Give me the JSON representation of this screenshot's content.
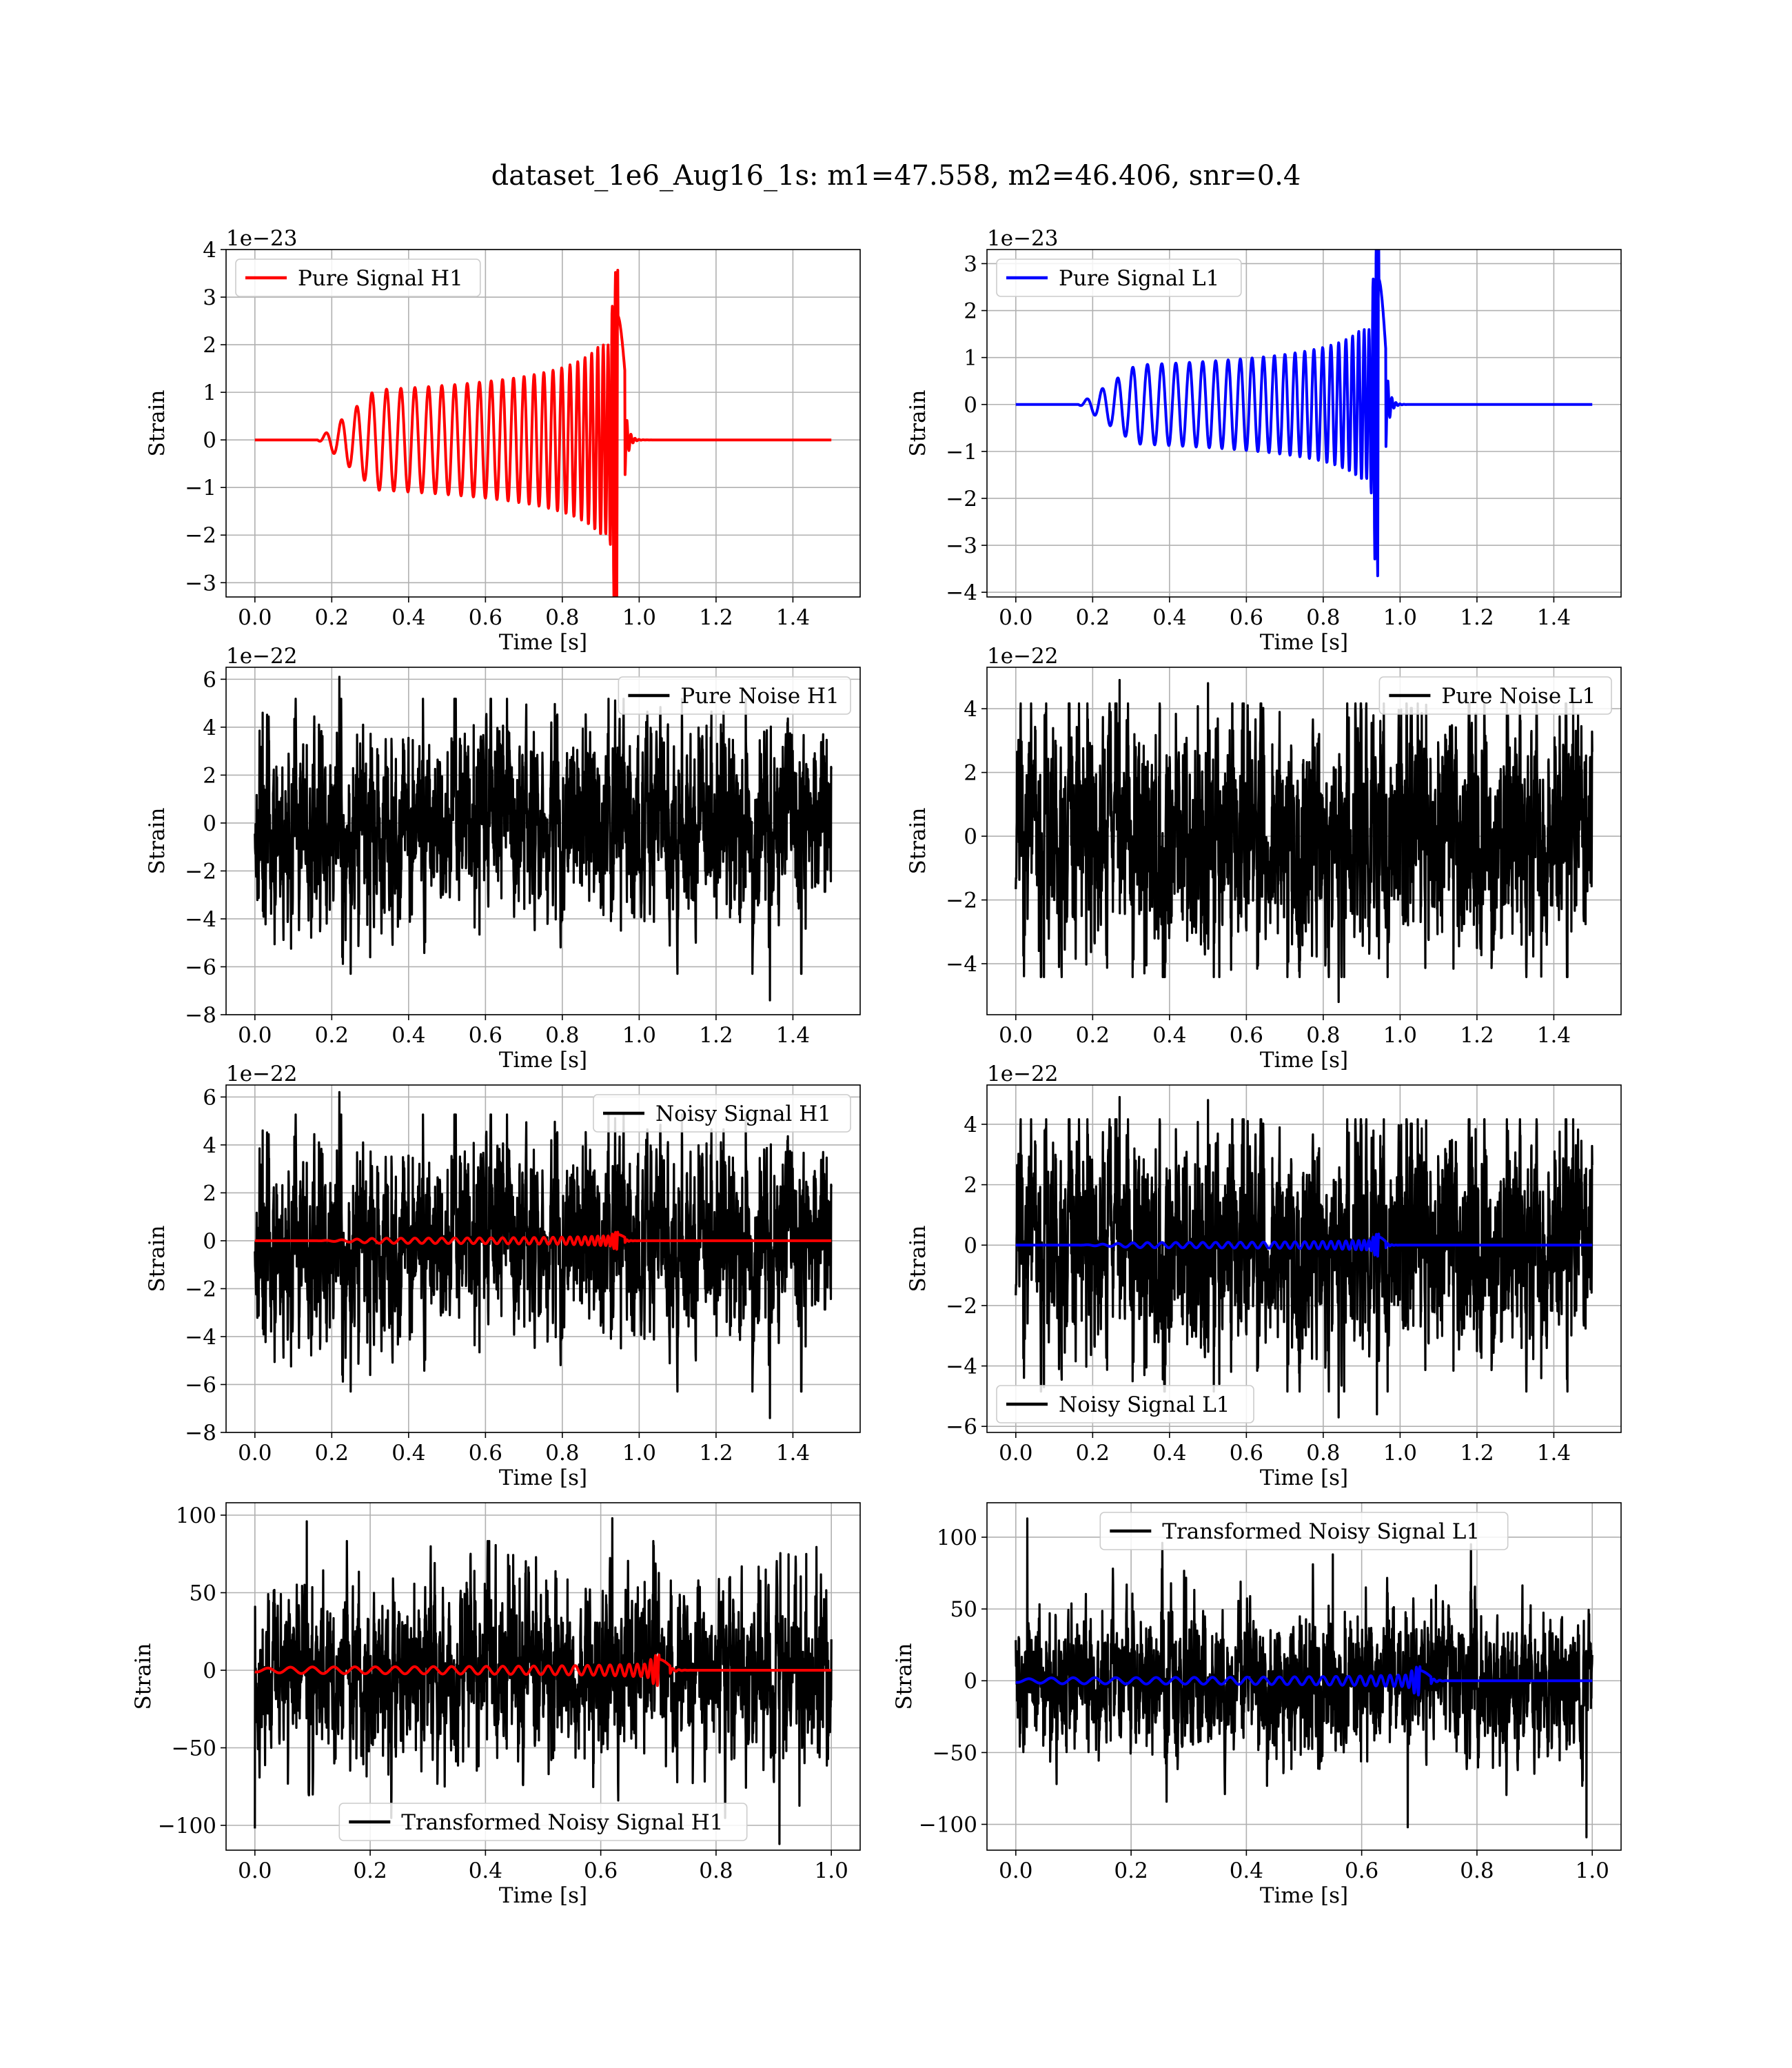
{
  "figure": {
    "suptitle": "dataset_1e6_Aug16_1s: m1=47.558, m2=46.406, snr=0.4"
  },
  "chart_data": [
    {
      "id": "pure-signal-h1",
      "type": "line",
      "xlabel": "Time [s]",
      "ylabel": "Strain",
      "offset_text": "1e−23",
      "xlim": [
        -0.075,
        1.575
      ],
      "ylim": [
        -3.3,
        4.0
      ],
      "xticks": [
        "0.0",
        "0.2",
        "0.4",
        "0.6",
        "0.8",
        "1.0",
        "1.2",
        "1.4"
      ],
      "yticks": [
        "−3",
        "−2",
        "−1",
        "0",
        "1",
        "2",
        "3",
        "4"
      ],
      "grid": true,
      "legend": {
        "placement": "upper left",
        "entries": [
          {
            "label": "Pure Signal H1",
            "color": "#ff0000"
          }
        ]
      },
      "series": [
        {
          "name": "Pure Signal H1",
          "color": "#ff0000",
          "kind": "chirp",
          "t0": 0.0,
          "t1": 1.5,
          "merger": 0.943,
          "amp": 2.0,
          "peak": 3.7,
          "trough": -3.1,
          "samples": [
            [
              0.15,
              0.0
            ],
            [
              0.2,
              -0.05
            ],
            [
              0.4,
              -0.3
            ],
            [
              0.6,
              -1.3
            ],
            [
              0.8,
              -1.8
            ],
            [
              0.94,
              3.7
            ],
            [
              0.95,
              -2.7
            ],
            [
              1.0,
              0.0
            ],
            [
              1.5,
              0.0
            ]
          ]
        }
      ]
    },
    {
      "id": "pure-signal-l1",
      "type": "line",
      "xlabel": "Time [s]",
      "ylabel": "Strain",
      "offset_text": "1e−23",
      "xlim": [
        -0.075,
        1.575
      ],
      "ylim": [
        -4.1,
        3.3
      ],
      "xticks": [
        "0.0",
        "0.2",
        "0.4",
        "0.6",
        "0.8",
        "1.0",
        "1.2",
        "1.4"
      ],
      "yticks": [
        "−4",
        "−3",
        "−2",
        "−1",
        "0",
        "1",
        "2",
        "3"
      ],
      "grid": true,
      "legend": {
        "placement": "upper left",
        "entries": [
          {
            "label": "Pure Signal L1",
            "color": "#0000ff"
          }
        ]
      },
      "series": [
        {
          "name": "Pure Signal L1",
          "color": "#0000ff",
          "kind": "chirp",
          "t0": 0.0,
          "t1": 1.5,
          "merger": 0.943,
          "amp": 1.6,
          "peak": 3.2,
          "trough": -3.8,
          "samples": [
            [
              0.15,
              0.0
            ],
            [
              0.2,
              0.1
            ],
            [
              0.4,
              -0.3
            ],
            [
              0.6,
              -1.0
            ],
            [
              0.8,
              -1.5
            ],
            [
              0.94,
              3.2
            ],
            [
              0.945,
              -3.8
            ],
            [
              1.0,
              0.0
            ],
            [
              1.5,
              0.0
            ]
          ]
        }
      ]
    },
    {
      "id": "pure-noise-h1",
      "type": "line",
      "xlabel": "Time [s]",
      "ylabel": "Strain",
      "offset_text": "1e−22",
      "xlim": [
        -0.075,
        1.575
      ],
      "ylim": [
        -8.0,
        6.5
      ],
      "xticks": [
        "0.0",
        "0.2",
        "0.4",
        "0.6",
        "0.8",
        "1.0",
        "1.2",
        "1.4"
      ],
      "yticks": [
        "−8",
        "−6",
        "−4",
        "−2",
        "0",
        "2",
        "4",
        "6"
      ],
      "grid": true,
      "legend": {
        "placement": "upper right",
        "entries": [
          {
            "label": "Pure Noise H1",
            "color": "#000000"
          }
        ]
      },
      "series": [
        {
          "name": "Pure Noise H1",
          "color": "#000000",
          "kind": "noise",
          "t0": 0.0,
          "t1": 1.5,
          "seed": 11,
          "scale": 1.6,
          "max": 6.1,
          "min": -7.4,
          "spikes": [
            [
              0.22,
              6.1
            ],
            [
              1.34,
              -7.4
            ],
            [
              0.3,
              -5.6
            ],
            [
              0.02,
              4.6
            ]
          ]
        }
      ]
    },
    {
      "id": "pure-noise-l1",
      "type": "line",
      "xlabel": "Time [s]",
      "ylabel": "Strain",
      "offset_text": "1e−22",
      "xlim": [
        -0.075,
        1.575
      ],
      "ylim": [
        -5.6,
        5.3
      ],
      "xticks": [
        "0.0",
        "0.2",
        "0.4",
        "0.6",
        "0.8",
        "1.0",
        "1.2",
        "1.4"
      ],
      "yticks": [
        "−4",
        "−2",
        "0",
        "2",
        "4"
      ],
      "grid": true,
      "legend": {
        "placement": "upper right",
        "entries": [
          {
            "label": "Pure Noise L1",
            "color": "#000000"
          }
        ]
      },
      "series": [
        {
          "name": "Pure Noise L1",
          "color": "#000000",
          "kind": "noise",
          "t0": 0.0,
          "t1": 1.5,
          "seed": 23,
          "scale": 1.5,
          "max": 4.9,
          "min": -5.2,
          "spikes": [
            [
              0.27,
              4.9
            ],
            [
              0.84,
              -5.2
            ],
            [
              0.5,
              4.8
            ],
            [
              0.06,
              -3.6
            ]
          ]
        }
      ]
    },
    {
      "id": "noisy-signal-h1",
      "type": "line",
      "xlabel": "Time [s]",
      "ylabel": "Strain",
      "offset_text": "1e−22",
      "xlim": [
        -0.075,
        1.575
      ],
      "ylim": [
        -8.0,
        6.5
      ],
      "xticks": [
        "0.0",
        "0.2",
        "0.4",
        "0.6",
        "0.8",
        "1.0",
        "1.2",
        "1.4"
      ],
      "yticks": [
        "−8",
        "−6",
        "−4",
        "−2",
        "0",
        "2",
        "4",
        "6"
      ],
      "grid": true,
      "legend": {
        "placement": "upper right",
        "entries": [
          {
            "label": "Noisy Signal H1",
            "color": "#000000"
          }
        ]
      },
      "series": [
        {
          "name": "Noisy Signal H1",
          "color": "#000000",
          "kind": "noise",
          "t0": 0.0,
          "t1": 1.5,
          "seed": 11,
          "scale": 1.6,
          "max": 6.2,
          "min": -7.4,
          "spikes": [
            [
              0.22,
              6.2
            ],
            [
              1.34,
              -7.4
            ],
            [
              0.3,
              -5.6
            ],
            [
              0.02,
              4.6
            ]
          ]
        },
        {
          "color": "#ff0000",
          "kind": "chirp",
          "t0": 0.0,
          "t1": 1.5,
          "merger": 0.943,
          "amp": 0.2,
          "peak": 0.37,
          "trough": -0.31,
          "samples": [
            [
              0.0,
              0.0
            ],
            [
              0.94,
              0.37
            ],
            [
              1.5,
              0.0
            ]
          ]
        }
      ]
    },
    {
      "id": "noisy-signal-l1",
      "type": "line",
      "xlabel": "Time [s]",
      "ylabel": "Strain",
      "offset_text": "1e−22",
      "xlim": [
        -0.075,
        1.575
      ],
      "ylim": [
        -6.2,
        5.3
      ],
      "xticks": [
        "0.0",
        "0.2",
        "0.4",
        "0.6",
        "0.8",
        "1.0",
        "1.2",
        "1.4"
      ],
      "yticks": [
        "−6",
        "−4",
        "−2",
        "0",
        "2",
        "4"
      ],
      "grid": true,
      "legend": {
        "placement": "lower left",
        "entries": [
          {
            "label": "Noisy Signal L1",
            "color": "#000000"
          }
        ]
      },
      "series": [
        {
          "name": "Noisy Signal L1",
          "color": "#000000",
          "kind": "noise",
          "t0": 0.0,
          "t1": 1.5,
          "seed": 23,
          "scale": 1.5,
          "max": 4.9,
          "min": -5.7,
          "spikes": [
            [
              0.27,
              4.9
            ],
            [
              0.84,
              -5.7
            ],
            [
              0.5,
              4.8
            ],
            [
              0.94,
              -5.6
            ]
          ]
        },
        {
          "color": "#0000ff",
          "kind": "chirp",
          "t0": 0.0,
          "t1": 1.5,
          "merger": 0.943,
          "amp": 0.16,
          "peak": 0.32,
          "trough": -0.38,
          "samples": [
            [
              0.0,
              0.0
            ],
            [
              0.94,
              0.32
            ],
            [
              1.5,
              0.0
            ]
          ]
        }
      ]
    },
    {
      "id": "transformed-noisy-signal-h1",
      "type": "line",
      "xlabel": "Time [s]",
      "ylabel": "Strain",
      "offset_text": "",
      "xlim": [
        -0.05,
        1.05
      ],
      "ylim": [
        -116,
        108
      ],
      "xticks": [
        "0.0",
        "0.2",
        "0.4",
        "0.6",
        "0.8",
        "1.0"
      ],
      "yticks": [
        "−100",
        "−50",
        "0",
        "50",
        "100"
      ],
      "grid": true,
      "legend": {
        "placement": "lower center",
        "entries": [
          {
            "label": "Transformed Noisy Signal H1",
            "color": "#000000"
          }
        ]
      },
      "series": [
        {
          "name": "Transformed Noisy Signal H1",
          "color": "#000000",
          "kind": "noise",
          "t0": 0.0,
          "t1": 1.0,
          "seed": 37,
          "scale": 22,
          "max": 98,
          "min": -112,
          "spikes": [
            [
              0.09,
              96
            ],
            [
              0.62,
              98
            ],
            [
              0.91,
              -112
            ],
            [
              0.0,
              -102
            ]
          ]
        },
        {
          "color": "#ff0000",
          "kind": "chirp",
          "t0": 0.0,
          "t1": 1.0,
          "merger": 0.7,
          "amp": 4,
          "peak": 10,
          "trough": -9,
          "samples": [
            [
              0.0,
              0.0
            ],
            [
              0.7,
              10.0
            ],
            [
              1.0,
              0.0
            ]
          ]
        }
      ]
    },
    {
      "id": "transformed-noisy-signal-l1",
      "type": "line",
      "xlabel": "Time [s]",
      "ylabel": "Strain",
      "offset_text": "",
      "xlim": [
        -0.05,
        1.05
      ],
      "ylim": [
        -118,
        124
      ],
      "xticks": [
        "0.0",
        "0.2",
        "0.4",
        "0.6",
        "0.8",
        "1.0"
      ],
      "yticks": [
        "−100",
        "−50",
        "0",
        "50",
        "100"
      ],
      "grid": true,
      "legend": {
        "placement": "upper center",
        "entries": [
          {
            "label": "Transformed Noisy Signal L1",
            "color": "#000000"
          }
        ]
      },
      "series": [
        {
          "name": "Transformed Noisy Signal L1",
          "color": "#000000",
          "kind": "noise",
          "t0": 0.0,
          "t1": 1.0,
          "seed": 53,
          "scale": 20,
          "max": 113,
          "min": -109,
          "spikes": [
            [
              0.02,
              113
            ],
            [
              0.99,
              -109
            ],
            [
              0.55,
              88
            ],
            [
              0.68,
              -102
            ]
          ]
        },
        {
          "color": "#0000ff",
          "kind": "chirp",
          "t0": 0.0,
          "t1": 1.0,
          "merger": 0.7,
          "amp": 4,
          "peak": 10,
          "trough": -9,
          "samples": [
            [
              0.0,
              0.0
            ],
            [
              0.7,
              10.0
            ],
            [
              1.0,
              0.0
            ]
          ]
        }
      ]
    }
  ]
}
